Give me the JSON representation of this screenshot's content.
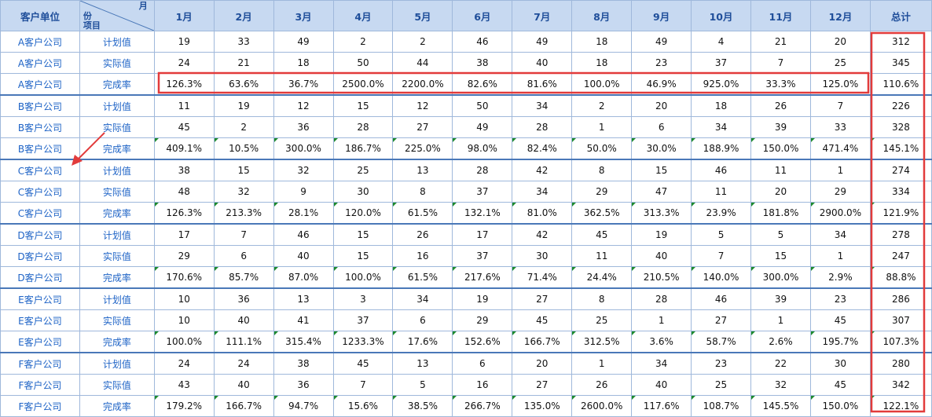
{
  "header": {
    "company_label": "客户单位",
    "diag_month": "月",
    "diag_fen": "份",
    "diag_item": "项目",
    "months": [
      "1月",
      "2月",
      "3月",
      "4月",
      "5月",
      "6月",
      "7月",
      "8月",
      "9月",
      "10月",
      "11月",
      "12月"
    ],
    "total_label": "总计"
  },
  "item_labels": {
    "plan": "计划值",
    "actual": "实际值",
    "rate": "完成率"
  },
  "companies": [
    {
      "name": "A客户公司",
      "plan": [
        "19",
        "33",
        "49",
        "2",
        "2",
        "46",
        "49",
        "18",
        "49",
        "4",
        "21",
        "20",
        "312"
      ],
      "actual": [
        "24",
        "21",
        "18",
        "50",
        "44",
        "38",
        "40",
        "18",
        "23",
        "37",
        "7",
        "25",
        "345"
      ],
      "rate": [
        "126.3%",
        "63.6%",
        "36.7%",
        "2500.0%",
        "2200.0%",
        "82.6%",
        "81.6%",
        "100.0%",
        "46.9%",
        "925.0%",
        "33.3%",
        "125.0%",
        "110.6%"
      ]
    },
    {
      "name": "B客户公司",
      "plan": [
        "11",
        "19",
        "12",
        "15",
        "12",
        "50",
        "34",
        "2",
        "20",
        "18",
        "26",
        "7",
        "226"
      ],
      "actual": [
        "45",
        "2",
        "36",
        "28",
        "27",
        "49",
        "28",
        "1",
        "6",
        "34",
        "39",
        "33",
        "328"
      ],
      "rate": [
        "409.1%",
        "10.5%",
        "300.0%",
        "186.7%",
        "225.0%",
        "98.0%",
        "82.4%",
        "50.0%",
        "30.0%",
        "188.9%",
        "150.0%",
        "471.4%",
        "145.1%"
      ]
    },
    {
      "name": "C客户公司",
      "plan": [
        "38",
        "15",
        "32",
        "25",
        "13",
        "28",
        "42",
        "8",
        "15",
        "46",
        "11",
        "1",
        "274"
      ],
      "actual": [
        "48",
        "32",
        "9",
        "30",
        "8",
        "37",
        "34",
        "29",
        "47",
        "11",
        "20",
        "29",
        "334"
      ],
      "rate": [
        "126.3%",
        "213.3%",
        "28.1%",
        "120.0%",
        "61.5%",
        "132.1%",
        "81.0%",
        "362.5%",
        "313.3%",
        "23.9%",
        "181.8%",
        "2900.0%",
        "121.9%"
      ]
    },
    {
      "name": "D客户公司",
      "plan": [
        "17",
        "7",
        "46",
        "15",
        "26",
        "17",
        "42",
        "45",
        "19",
        "5",
        "5",
        "34",
        "278"
      ],
      "actual": [
        "29",
        "6",
        "40",
        "15",
        "16",
        "37",
        "30",
        "11",
        "40",
        "7",
        "15",
        "1",
        "247"
      ],
      "rate": [
        "170.6%",
        "85.7%",
        "87.0%",
        "100.0%",
        "61.5%",
        "217.6%",
        "71.4%",
        "24.4%",
        "210.5%",
        "140.0%",
        "300.0%",
        "2.9%",
        "88.8%"
      ]
    },
    {
      "name": "E客户公司",
      "plan": [
        "10",
        "36",
        "13",
        "3",
        "34",
        "19",
        "27",
        "8",
        "28",
        "46",
        "39",
        "23",
        "286"
      ],
      "actual": [
        "10",
        "40",
        "41",
        "37",
        "6",
        "29",
        "45",
        "25",
        "1",
        "27",
        "1",
        "45",
        "307"
      ],
      "rate": [
        "100.0%",
        "111.1%",
        "315.4%",
        "1233.3%",
        "17.6%",
        "152.6%",
        "166.7%",
        "312.5%",
        "3.6%",
        "58.7%",
        "2.6%",
        "195.7%",
        "107.3%"
      ]
    },
    {
      "name": "F客户公司",
      "plan": [
        "24",
        "24",
        "38",
        "45",
        "13",
        "6",
        "20",
        "1",
        "34",
        "23",
        "22",
        "30",
        "280"
      ],
      "actual": [
        "43",
        "40",
        "36",
        "7",
        "5",
        "16",
        "27",
        "26",
        "40",
        "25",
        "32",
        "45",
        "342"
      ],
      "rate": [
        "179.2%",
        "166.7%",
        "94.7%",
        "15.6%",
        "38.5%",
        "266.7%",
        "135.0%",
        "2600.0%",
        "117.6%",
        "108.7%",
        "145.5%",
        "150.0%",
        "122.1%"
      ]
    }
  ],
  "annotation_color": "#e23b3b"
}
